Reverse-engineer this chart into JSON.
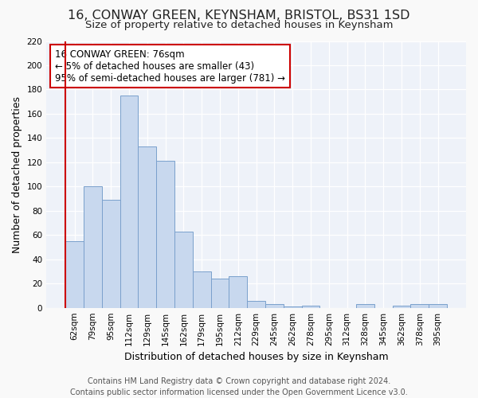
{
  "title": "16, CONWAY GREEN, KEYNSHAM, BRISTOL, BS31 1SD",
  "subtitle": "Size of property relative to detached houses in Keynsham",
  "bar_labels": [
    "62sqm",
    "79sqm",
    "95sqm",
    "112sqm",
    "129sqm",
    "145sqm",
    "162sqm",
    "179sqm",
    "195sqm",
    "212sqm",
    "229sqm",
    "245sqm",
    "262sqm",
    "278sqm",
    "295sqm",
    "312sqm",
    "328sqm",
    "345sqm",
    "362sqm",
    "378sqm",
    "395sqm"
  ],
  "bar_values": [
    55,
    100,
    89,
    175,
    133,
    121,
    63,
    30,
    24,
    26,
    6,
    3,
    1,
    2,
    0,
    0,
    3,
    0,
    2,
    3,
    3
  ],
  "bar_color": "#c8d8ee",
  "bar_edge_color": "#7aa0cc",
  "xlabel": "Distribution of detached houses by size in Keynsham",
  "ylabel": "Number of detached properties",
  "ylim": [
    0,
    220
  ],
  "yticks": [
    0,
    20,
    40,
    60,
    80,
    100,
    120,
    140,
    160,
    180,
    200,
    220
  ],
  "property_line_color": "#cc0000",
  "annotation_title": "16 CONWAY GREEN: 76sqm",
  "annotation_line1": "← 5% of detached houses are smaller (43)",
  "annotation_line2": "95% of semi-detached houses are larger (781) →",
  "annotation_box_edge_color": "#cc0000",
  "footer_line1": "Contains HM Land Registry data © Crown copyright and database right 2024.",
  "footer_line2": "Contains public sector information licensed under the Open Government Licence v3.0.",
  "plot_bg_color": "#eef2f9",
  "fig_bg_color": "#f9f9f9",
  "grid_color": "#ffffff",
  "title_fontsize": 11.5,
  "subtitle_fontsize": 9.5,
  "axis_label_fontsize": 9,
  "tick_fontsize": 7.5,
  "annotation_fontsize": 8.5,
  "footer_fontsize": 7
}
